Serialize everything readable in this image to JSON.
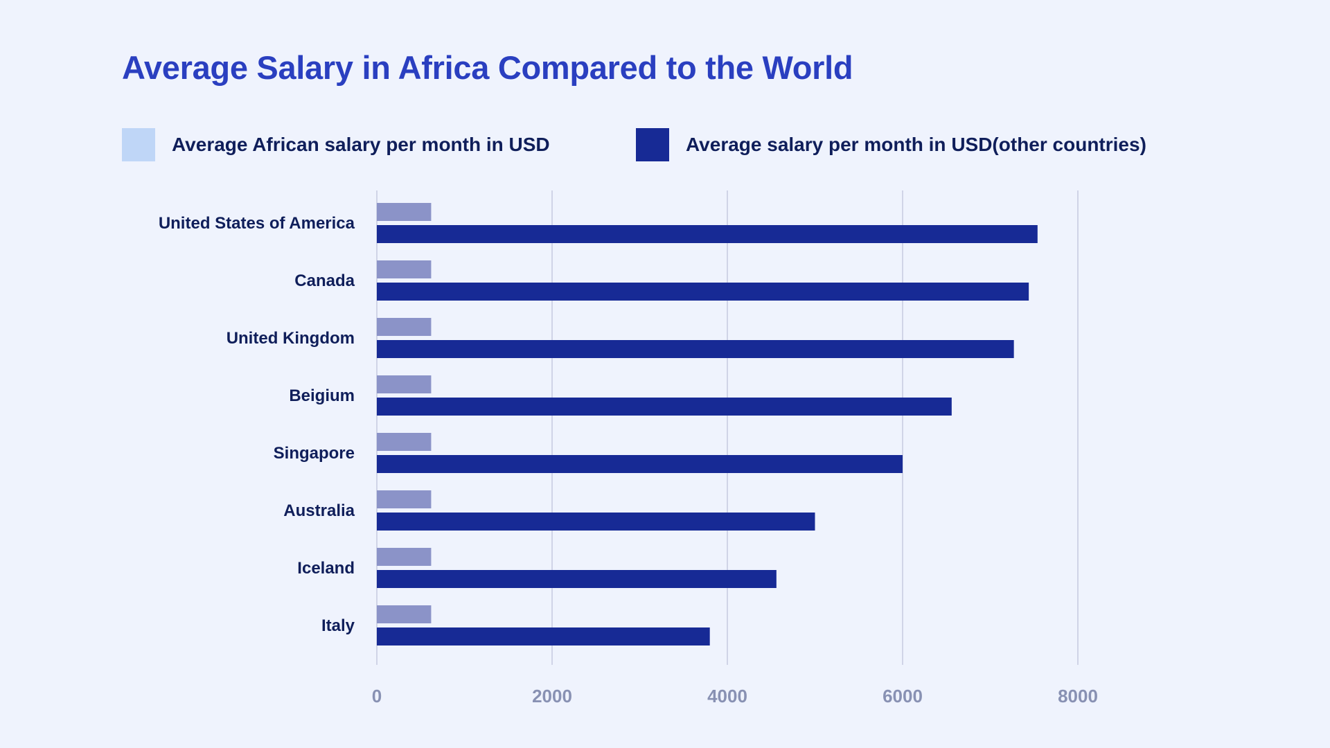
{
  "colors": {
    "background": "#eff3fd",
    "title": "#2a3fc0",
    "label": "#0f1e5a",
    "tick": "#8891b3",
    "grid": "#c5cae0"
  },
  "chart_data": {
    "type": "bar",
    "orientation": "horizontal",
    "title": "Average Salary in Africa Compared to the World",
    "xlabel": "",
    "ylabel": "",
    "legend_position": "top",
    "grid": true,
    "xlim": [
      0,
      8000
    ],
    "xticks": [
      0,
      2000,
      4000,
      6000,
      8000
    ],
    "categories": [
      "United States of America",
      "Canada",
      "United Kingdom",
      "Beigium",
      "Singapore",
      "Australia",
      "Iceland",
      "Italy"
    ],
    "series": [
      {
        "name": "Average African salary per month in USD",
        "legend_color": "#bfd6f7",
        "bar_color": "#8b93c8",
        "values": [
          620,
          620,
          620,
          620,
          620,
          620,
          620,
          620
        ]
      },
      {
        "name": "Average salary per month in USD(other countries)",
        "legend_color": "#172a95",
        "bar_color": "#172a95",
        "values": [
          7540,
          7440,
          7270,
          6560,
          6000,
          5000,
          4560,
          3800
        ]
      }
    ]
  }
}
